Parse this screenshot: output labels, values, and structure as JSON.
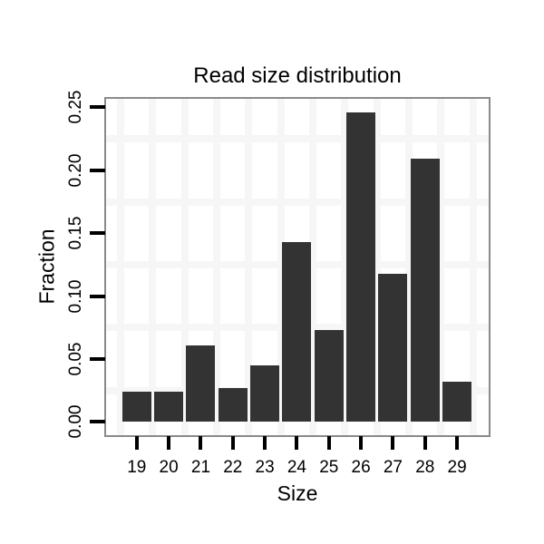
{
  "chart_data": {
    "type": "bar",
    "title": "Read size distribution",
    "xlabel": "Size",
    "ylabel": "Fraction",
    "categories": [
      "19",
      "20",
      "21",
      "22",
      "23",
      "24",
      "25",
      "26",
      "27",
      "28",
      "29"
    ],
    "values": [
      0.024,
      0.024,
      0.061,
      0.027,
      0.045,
      0.143,
      0.073,
      0.246,
      0.118,
      0.209,
      0.032
    ],
    "ytick_labels": [
      "0.00",
      "0.05",
      "0.10",
      "0.15",
      "0.20",
      "0.25"
    ],
    "ylim": [
      0,
      0.25
    ],
    "grid": "light gridlines between bars and at minor y breaks",
    "legend": "none",
    "colors": {
      "bar": "#333333",
      "panel_background": "#ffffff",
      "panel_border": "#8a8a8a",
      "gridline": "#f6f6f6",
      "tick": "#000000",
      "text": "#000000",
      "figure_background": "#ffffff"
    }
  }
}
